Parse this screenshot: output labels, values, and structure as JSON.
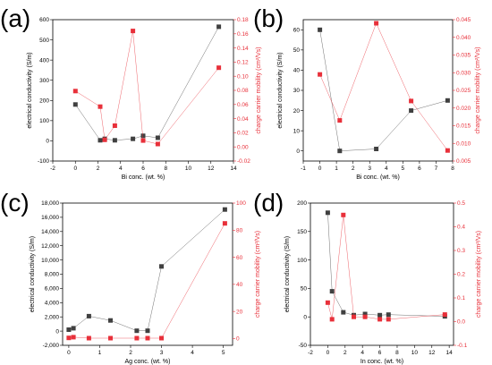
{
  "colors": {
    "conductivity": "#404040",
    "mobility": "#e8303a",
    "frame": "#000000"
  },
  "chart_data": [
    {
      "panel": "(a)",
      "type": "line",
      "xlabel": "Bi conc. (wt. %)",
      "ylabel": "electrical conductivity (S/m)",
      "y2label": "charge carrier mobility (cm²/Vs)",
      "xlim": [
        -2,
        14
      ],
      "ylim": [
        -100,
        600
      ],
      "y2lim": [
        -0.02,
        0.18
      ],
      "xticks": [
        "-2",
        "0",
        "2",
        "4",
        "6",
        "8",
        "10",
        "12",
        "14"
      ],
      "yticks": [
        "-100",
        "0",
        "100",
        "200",
        "300",
        "400",
        "500",
        "600"
      ],
      "y2ticks": [
        "-0.02",
        "0.00",
        "0.02",
        "0.04",
        "0.06",
        "0.08",
        "0.10",
        "0.12",
        "0.14",
        "0.16",
        "0.18"
      ],
      "series": [
        {
          "axis": "left",
          "x": [
            0,
            2.2,
            2.6,
            3.5,
            5.1,
            6.0,
            7.3,
            12.7
          ],
          "values": [
            180,
            3,
            10,
            3,
            10,
            25,
            15,
            565
          ]
        },
        {
          "axis": "right",
          "x": [
            0,
            2.2,
            2.6,
            3.5,
            5.1,
            6.0,
            7.3,
            12.7
          ],
          "values": [
            0.079,
            0.057,
            0.01,
            0.03,
            0.164,
            0.009,
            0.004,
            0.112
          ]
        }
      ]
    },
    {
      "panel": "(b)",
      "type": "line",
      "xlabel": "Bi conc. (wt. %)",
      "ylabel": "electrical conductivity (S/m)",
      "y2label": "charge carrier mobility (cm²/Vs)",
      "xlim": [
        -1,
        8
      ],
      "ylim": [
        -5,
        65
      ],
      "y2lim": [
        0.005,
        0.045
      ],
      "xticks": [
        "-1",
        "0",
        "1",
        "2",
        "3",
        "4",
        "5",
        "6",
        "7",
        "8"
      ],
      "yticks": [
        "0",
        "10",
        "20",
        "30",
        "40",
        "50",
        "60"
      ],
      "y2ticks": [
        "0.005",
        "0.010",
        "0.015",
        "0.020",
        "0.025",
        "0.030",
        "0.035",
        "0.040",
        "0.045"
      ],
      "series": [
        {
          "axis": "left",
          "x": [
            0,
            1.2,
            3.4,
            5.5,
            7.7
          ],
          "values": [
            60,
            0,
            1,
            20,
            25
          ]
        },
        {
          "axis": "right",
          "x": [
            0,
            1.2,
            3.4,
            5.5,
            7.7
          ],
          "values": [
            0.0295,
            0.0165,
            0.044,
            0.022,
            0.008
          ]
        }
      ]
    },
    {
      "panel": "(c)",
      "type": "line",
      "xlabel": "Ag conc. (wt. %)",
      "ylabel": "electrical conductivity (S/m)",
      "y2label": "charge carrier mobility (cm²/Vs)",
      "xlim": [
        -0.2,
        5.3
      ],
      "ylim": [
        -2000,
        18000
      ],
      "y2lim": [
        -5,
        100
      ],
      "xticks": [
        "0",
        "1",
        "2",
        "3",
        "4",
        "5"
      ],
      "yticks": [
        "-2,000",
        "0",
        "2,000",
        "4,000",
        "6,000",
        "8,000",
        "10,000",
        "12,000",
        "14,000",
        "16,000",
        "18,000"
      ],
      "y2ticks": [
        "0",
        "20",
        "40",
        "60",
        "80",
        "100"
      ],
      "series": [
        {
          "axis": "left",
          "x": [
            0,
            0.15,
            0.65,
            1.35,
            2.2,
            2.55,
            3.0,
            5.05
          ],
          "values": [
            200,
            400,
            2100,
            1500,
            50,
            50,
            9100,
            17100
          ]
        },
        {
          "axis": "right",
          "x": [
            0,
            0.15,
            0.65,
            1.35,
            2.2,
            2.55,
            3.0,
            5.05
          ],
          "values": [
            0.5,
            1,
            0.3,
            0.3,
            0.3,
            0.3,
            0.3,
            85
          ]
        }
      ]
    },
    {
      "panel": "(d)",
      "type": "line",
      "xlabel": "In conc. (wt. %)",
      "ylabel": "electrical conductivity (S/m)",
      "y2label": "charge carrier mobility (cm²/Vs)",
      "xlim": [
        -2,
        14.5
      ],
      "ylim": [
        -50,
        200
      ],
      "y2lim": [
        -0.1,
        0.5
      ],
      "xticks": [
        "-2",
        "0",
        "2",
        "4",
        "6",
        "8",
        "10",
        "12",
        "14"
      ],
      "yticks": [
        "-50",
        "0",
        "50",
        "100",
        "150",
        "200"
      ],
      "y2ticks": [
        "-0.1",
        "0.0",
        "0.1",
        "0.2",
        "0.3",
        "0.4",
        "0.5"
      ],
      "series": [
        {
          "axis": "left",
          "x": [
            0,
            0.5,
            1.8,
            3.0,
            4.3,
            6.0,
            7.0,
            13.5
          ],
          "values": [
            183,
            45,
            8,
            3,
            5,
            3,
            4,
            1
          ]
        },
        {
          "axis": "right",
          "x": [
            0,
            0.5,
            1.8,
            3.0,
            4.3,
            6.0,
            7.0,
            13.5
          ],
          "values": [
            0.08,
            0.01,
            0.45,
            0.02,
            0.02,
            0.01,
            0.01,
            0.03
          ]
        }
      ]
    }
  ]
}
